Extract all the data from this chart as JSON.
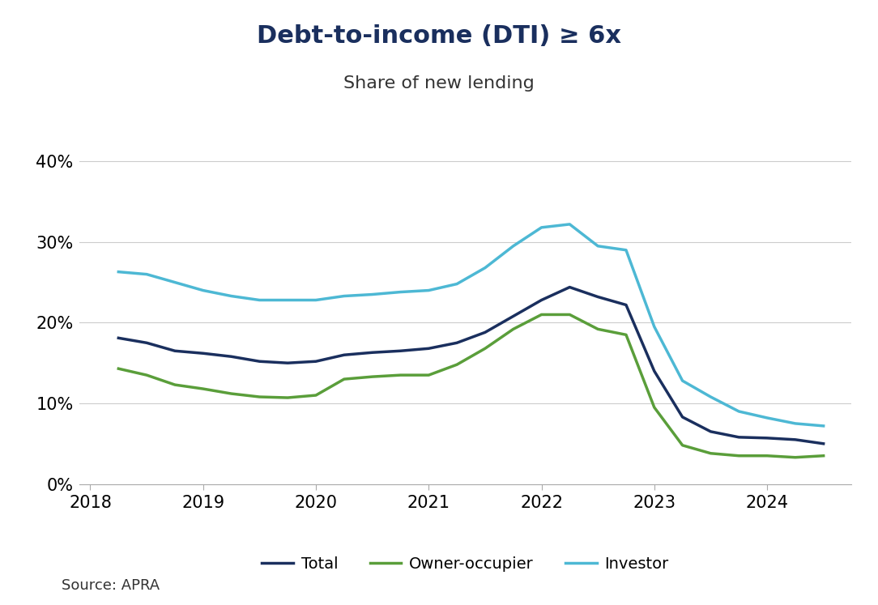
{
  "title": "Debt-to-income (DTI) ≥ 6x",
  "subtitle": "Share of new lending",
  "source": "Source: APRA",
  "legend_labels": [
    "Total",
    "Owner-occupier",
    "Investor"
  ],
  "colors": {
    "total": "#1a2f5e",
    "owner_occupier": "#5a9e3a",
    "investor": "#4db8d4"
  },
  "ylim": [
    0,
    0.42
  ],
  "yticks": [
    0,
    0.1,
    0.2,
    0.3,
    0.4
  ],
  "background_color": "#ffffff",
  "total": {
    "x": [
      2018.25,
      2018.5,
      2018.75,
      2019.0,
      2019.25,
      2019.5,
      2019.75,
      2020.0,
      2020.25,
      2020.5,
      2020.75,
      2021.0,
      2021.25,
      2021.5,
      2021.75,
      2022.0,
      2022.25,
      2022.5,
      2022.75,
      2023.0,
      2023.25,
      2023.5,
      2023.75,
      2024.0,
      2024.25,
      2024.5
    ],
    "y": [
      0.181,
      0.175,
      0.165,
      0.162,
      0.158,
      0.152,
      0.15,
      0.152,
      0.16,
      0.163,
      0.165,
      0.168,
      0.175,
      0.188,
      0.208,
      0.228,
      0.244,
      0.232,
      0.222,
      0.14,
      0.083,
      0.065,
      0.058,
      0.057,
      0.055,
      0.05
    ]
  },
  "owner_occupier": {
    "x": [
      2018.25,
      2018.5,
      2018.75,
      2019.0,
      2019.25,
      2019.5,
      2019.75,
      2020.0,
      2020.25,
      2020.5,
      2020.75,
      2021.0,
      2021.25,
      2021.5,
      2021.75,
      2022.0,
      2022.25,
      2022.5,
      2022.75,
      2023.0,
      2023.25,
      2023.5,
      2023.75,
      2024.0,
      2024.25,
      2024.5
    ],
    "y": [
      0.143,
      0.135,
      0.123,
      0.118,
      0.112,
      0.108,
      0.107,
      0.11,
      0.13,
      0.133,
      0.135,
      0.135,
      0.148,
      0.168,
      0.192,
      0.21,
      0.21,
      0.192,
      0.185,
      0.095,
      0.048,
      0.038,
      0.035,
      0.035,
      0.033,
      0.035
    ]
  },
  "investor": {
    "x": [
      2018.25,
      2018.5,
      2018.75,
      2019.0,
      2019.25,
      2019.5,
      2019.75,
      2020.0,
      2020.25,
      2020.5,
      2020.75,
      2021.0,
      2021.25,
      2021.5,
      2021.75,
      2022.0,
      2022.25,
      2022.5,
      2022.75,
      2023.0,
      2023.25,
      2023.5,
      2023.75,
      2024.0,
      2024.25,
      2024.5
    ],
    "y": [
      0.263,
      0.26,
      0.25,
      0.24,
      0.233,
      0.228,
      0.228,
      0.228,
      0.233,
      0.235,
      0.238,
      0.24,
      0.248,
      0.268,
      0.295,
      0.318,
      0.322,
      0.295,
      0.29,
      0.195,
      0.128,
      0.108,
      0.09,
      0.082,
      0.075,
      0.072
    ]
  },
  "title_fontsize": 22,
  "subtitle_fontsize": 16,
  "tick_fontsize": 15,
  "source_fontsize": 13,
  "legend_fontsize": 14,
  "line_width": 2.5
}
